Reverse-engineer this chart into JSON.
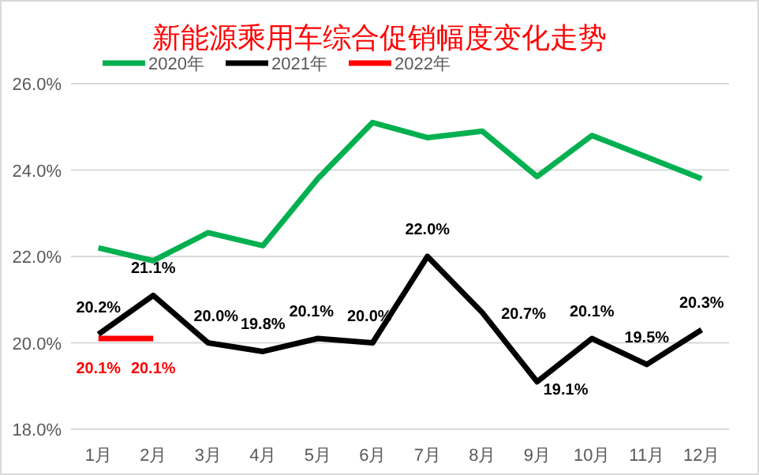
{
  "chart_data": {
    "type": "line",
    "title": "新能源乘用车综合促销幅度变化走势",
    "categories": [
      "1月",
      "2月",
      "3月",
      "4月",
      "5月",
      "6月",
      "7月",
      "8月",
      "9月",
      "10月",
      "11月",
      "12月"
    ],
    "series": [
      {
        "name": "2020年",
        "color": "#00b050",
        "values": [
          22.2,
          21.9,
          22.55,
          22.25,
          23.8,
          25.1,
          24.75,
          24.9,
          23.85,
          24.8,
          24.3,
          23.8
        ]
      },
      {
        "name": "2021年",
        "color": "#000000",
        "values": [
          20.2,
          21.1,
          20.0,
          19.8,
          20.1,
          20.0,
          22.0,
          20.7,
          19.1,
          20.1,
          19.5,
          20.3
        ],
        "value_labels": [
          "20.2%",
          "21.1%",
          "20.0%",
          "19.8%",
          "20.1%",
          "20.0%",
          "22.0%",
          "20.7%",
          "19.1%",
          "20.1%",
          "19.5%",
          "20.3%"
        ]
      },
      {
        "name": "2022年",
        "color": "#ff0000",
        "values": [
          20.1,
          20.1,
          null,
          null,
          null,
          null,
          null,
          null,
          null,
          null,
          null,
          null
        ],
        "value_labels": [
          "20.1%",
          "20.1%",
          null,
          null,
          null,
          null,
          null,
          null,
          null,
          null,
          null,
          null
        ]
      }
    ],
    "ylim": [
      18,
      26
    ],
    "yticks": [
      {
        "value": 18,
        "label": "18.0%"
      },
      {
        "value": 20,
        "label": "20.0%"
      },
      {
        "value": 22,
        "label": "22.0%"
      },
      {
        "value": 24,
        "label": "24.0%"
      },
      {
        "value": 26,
        "label": "26.0%"
      }
    ],
    "grid": "y",
    "legend": "top left",
    "marker": "none",
    "line_style": "solid"
  }
}
